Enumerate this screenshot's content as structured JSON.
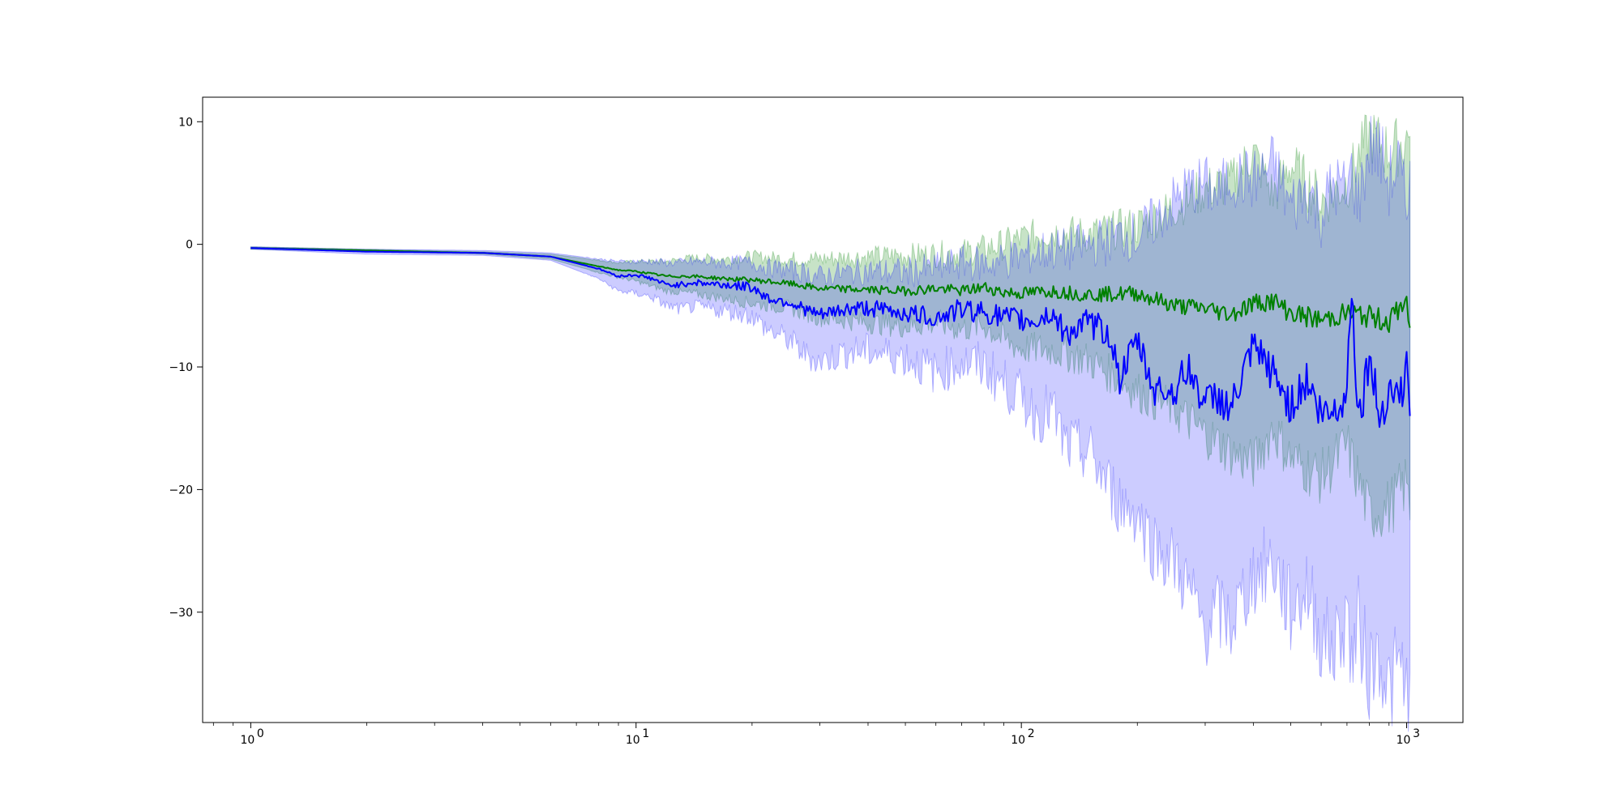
{
  "chart_data": {
    "type": "line",
    "title": "",
    "xlabel": "",
    "ylabel": "",
    "xscale": "log",
    "xlim": [
      0.75,
      1400
    ],
    "ylim": [
      -39,
      12
    ],
    "grid": false,
    "x_ticks": [
      {
        "value": 1,
        "label": "10",
        "exp": "0"
      },
      {
        "value": 10,
        "label": "10",
        "exp": "1"
      },
      {
        "value": 100,
        "label": "10",
        "exp": "2"
      },
      {
        "value": 1000,
        "label": "10",
        "exp": "3"
      }
    ],
    "y_ticks": [
      {
        "value": 10,
        "label": "10"
      },
      {
        "value": 0,
        "label": "0"
      },
      {
        "value": -10,
        "label": "−10"
      },
      {
        "value": -20,
        "label": "−20"
      },
      {
        "value": -30,
        "label": "−30"
      }
    ],
    "series": [
      {
        "color": "#008000",
        "band_color": "#008000",
        "band_opacity": 0.22,
        "x": [
          1,
          2,
          4,
          6,
          8,
          9,
          10,
          12,
          14,
          17,
          20,
          25,
          30,
          40,
          50,
          60,
          70,
          80,
          90,
          100,
          120,
          150,
          200,
          250,
          300,
          350,
          400,
          450,
          500,
          600,
          700,
          800,
          900,
          1000,
          1020
        ],
        "mean": [
          -0.3,
          -0.5,
          -0.7,
          -1.0,
          -1.8,
          -2.1,
          -2.2,
          -2.6,
          -2.6,
          -2.8,
          -2.9,
          -3.2,
          -3.6,
          -3.7,
          -3.8,
          -3.6,
          -3.8,
          -3.5,
          -3.9,
          -4.0,
          -3.8,
          -4.1,
          -4.0,
          -5.0,
          -5.2,
          -5.7,
          -4.8,
          -4.6,
          -5.6,
          -6.2,
          -5.6,
          -5.9,
          -6.3,
          -4.5,
          -6.8
        ],
        "upper": [
          -0.2,
          -0.4,
          -0.6,
          -0.8,
          -1.3,
          -1.5,
          -1.4,
          -1.4,
          -1.1,
          -1.2,
          -1.0,
          -1.2,
          -1.2,
          -1.0,
          -0.9,
          -0.8,
          -0.7,
          -0.4,
          0.0,
          0.5,
          1.0,
          0.8,
          1.5,
          3.0,
          4.5,
          5.0,
          7.5,
          4.0,
          6.5,
          3.5,
          5.0,
          9.0,
          7.5,
          8.5,
          8.8
        ],
        "lower": [
          -0.4,
          -0.6,
          -0.8,
          -1.2,
          -2.3,
          -2.7,
          -3.0,
          -3.8,
          -4.0,
          -4.4,
          -4.8,
          -5.2,
          -6.0,
          -6.4,
          -6.7,
          -6.4,
          -6.9,
          -6.6,
          -7.8,
          -8.5,
          -8.6,
          -9.5,
          -12.0,
          -13.5,
          -15.5,
          -17.0,
          -18.0,
          -15.0,
          -17.5,
          -19.0,
          -16.5,
          -22.0,
          -21.5,
          -19.5,
          -22.5
        ]
      },
      {
        "color": "#0000ff",
        "band_color": "#0000ff",
        "band_opacity": 0.2,
        "x": [
          1,
          2,
          4,
          6,
          8,
          9,
          10,
          11,
          12,
          13,
          14,
          17,
          20,
          22,
          25,
          27,
          30,
          35,
          40,
          50,
          60,
          70,
          80,
          90,
          100,
          110,
          120,
          130,
          150,
          170,
          180,
          200,
          220,
          250,
          270,
          300,
          320,
          350,
          400,
          450,
          500,
          550,
          600,
          650,
          700,
          720,
          750,
          800,
          850,
          900,
          950,
          1000,
          1020
        ],
        "mean": [
          -0.3,
          -0.6,
          -0.7,
          -1.0,
          -2.0,
          -2.6,
          -2.5,
          -2.8,
          -3.3,
          -3.3,
          -3.1,
          -3.3,
          -3.5,
          -4.4,
          -4.7,
          -5.2,
          -5.8,
          -5.3,
          -5.2,
          -5.6,
          -6.0,
          -5.3,
          -5.5,
          -6.0,
          -6.2,
          -6.2,
          -5.6,
          -7.3,
          -6.4,
          -7.4,
          -11.0,
          -7.8,
          -11.8,
          -12.0,
          -10.0,
          -13.0,
          -12.3,
          -13.5,
          -8.5,
          -10.5,
          -13.2,
          -11.0,
          -14.0,
          -13.5,
          -12.0,
          -3.0,
          -14.5,
          -9.0,
          -14.2,
          -11.5,
          -12.5,
          -10.5,
          -14.0
        ],
        "upper": [
          -0.2,
          -0.4,
          -0.5,
          -0.7,
          -1.2,
          -1.4,
          -1.4,
          -1.4,
          -1.5,
          -1.5,
          -1.4,
          -1.5,
          -1.5,
          -1.9,
          -2.1,
          -2.3,
          -2.6,
          -2.3,
          -2.2,
          -2.3,
          -2.0,
          -1.5,
          -1.6,
          -1.3,
          -1.0,
          -0.7,
          -0.4,
          -0.5,
          0.0,
          0.3,
          0.8,
          0.6,
          1.8,
          3.5,
          4.5,
          5.0,
          3.8,
          5.5,
          5.2,
          6.5,
          3.0,
          4.5,
          2.5,
          5.0,
          4.0,
          6.0,
          3.5,
          8.0,
          7.5,
          5.0,
          6.5,
          2.5,
          6.8
        ],
        "lower": [
          -0.4,
          -0.8,
          -0.9,
          -1.3,
          -2.8,
          -3.8,
          -4.0,
          -4.3,
          -5.0,
          -5.3,
          -5.1,
          -5.4,
          -5.8,
          -7.0,
          -7.8,
          -8.8,
          -9.6,
          -8.8,
          -8.7,
          -9.2,
          -10.5,
          -9.6,
          -10.0,
          -11.4,
          -12.5,
          -14.0,
          -13.5,
          -16.5,
          -17.0,
          -20.0,
          -21.0,
          -22.0,
          -24.5,
          -26.0,
          -28.0,
          -31.5,
          -30.0,
          -31.0,
          -27.0,
          -26.0,
          -30.0,
          -28.0,
          -32.0,
          -33.0,
          -30.0,
          -34.0,
          -31.0,
          -35.0,
          -33.0,
          -36.5,
          -34.5,
          -36.0,
          -35.0
        ]
      }
    ]
  }
}
